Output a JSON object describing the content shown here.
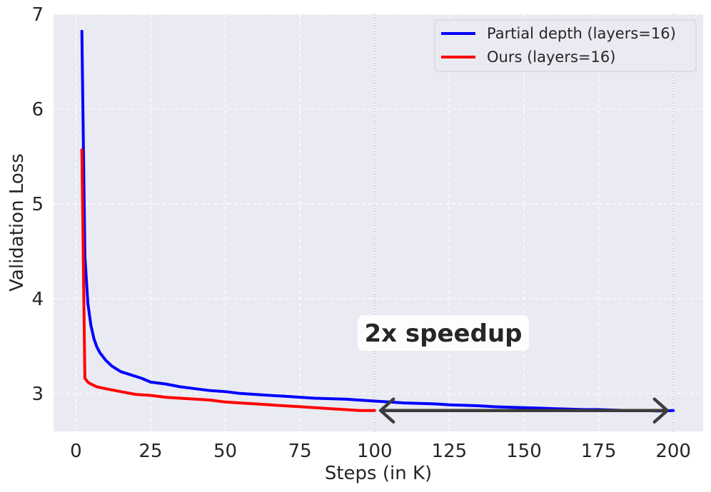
{
  "chart_data": {
    "type": "line",
    "title": "",
    "xlabel": "Steps (in K)",
    "ylabel": "Validation Loss",
    "xlim": [
      -7.5,
      210
    ],
    "ylim": [
      2.6,
      7.0
    ],
    "xticks": [
      0,
      25,
      50,
      75,
      100,
      125,
      150,
      175,
      200
    ],
    "yticks": [
      3,
      4,
      5,
      6,
      7
    ],
    "grid": true,
    "legend_position": "top-right",
    "series": [
      {
        "name": "Partial depth (layers=16)",
        "color": "#0000ff",
        "x": [
          2,
          3,
          4,
          5,
          6,
          7,
          8,
          10,
          12,
          15,
          18,
          20,
          22,
          25,
          30,
          35,
          40,
          45,
          50,
          55,
          60,
          65,
          70,
          75,
          80,
          85,
          90,
          95,
          100,
          105,
          110,
          115,
          120,
          125,
          130,
          135,
          140,
          145,
          150,
          155,
          160,
          165,
          170,
          175,
          180,
          185,
          190,
          195,
          200
        ],
        "y": [
          6.82,
          4.45,
          3.95,
          3.72,
          3.58,
          3.49,
          3.43,
          3.35,
          3.29,
          3.23,
          3.2,
          3.18,
          3.16,
          3.12,
          3.1,
          3.07,
          3.05,
          3.03,
          3.02,
          3.0,
          2.99,
          2.98,
          2.97,
          2.96,
          2.95,
          2.945,
          2.94,
          2.93,
          2.92,
          2.91,
          2.9,
          2.895,
          2.89,
          2.88,
          2.875,
          2.87,
          2.86,
          2.855,
          2.85,
          2.845,
          2.84,
          2.835,
          2.83,
          2.83,
          2.825,
          2.82,
          2.82,
          2.815,
          2.82
        ]
      },
      {
        "name": "Ours (layers=16)",
        "color": "#ff0000",
        "x": [
          2,
          3,
          4,
          5,
          7,
          10,
          15,
          20,
          25,
          30,
          35,
          40,
          45,
          50,
          55,
          60,
          65,
          70,
          75,
          80,
          85,
          90,
          95,
          100
        ],
        "y": [
          5.57,
          3.16,
          3.12,
          3.1,
          3.07,
          3.05,
          3.02,
          2.99,
          2.98,
          2.96,
          2.95,
          2.94,
          2.93,
          2.91,
          2.9,
          2.89,
          2.88,
          2.87,
          2.86,
          2.85,
          2.84,
          2.83,
          2.82,
          2.82
        ]
      }
    ],
    "vlines": [
      100,
      200
    ],
    "arrow": {
      "x_start": 102,
      "x_end": 198,
      "y": 2.82,
      "double_headed": true
    },
    "annotation": {
      "text": "2x speedup",
      "x": 123,
      "y": 3.65
    }
  }
}
